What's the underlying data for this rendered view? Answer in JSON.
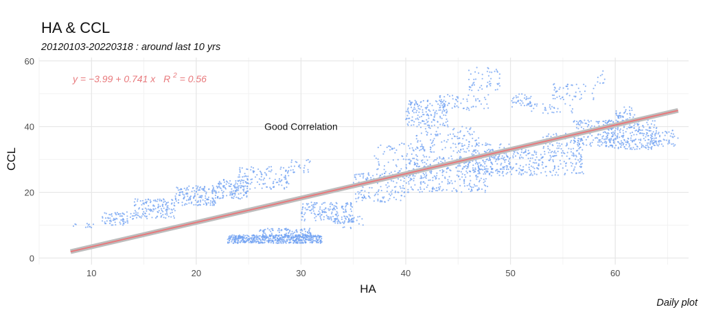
{
  "chart_data": {
    "type": "scatter",
    "title": "HA & CCL",
    "subtitle": "20120103-20220318 : around last 10 yrs",
    "caption": "Daily plot",
    "xlabel": "HA",
    "ylabel": "CCL",
    "xlim": [
      5,
      67
    ],
    "ylim": [
      -2,
      61
    ],
    "x_ticks": [
      10,
      20,
      30,
      40,
      50,
      60
    ],
    "y_ticks": [
      0,
      20,
      40,
      60
    ],
    "grid": true,
    "point_color": "#6fa0f2",
    "fit_line": {
      "intercept": -3.99,
      "slope": 0.741,
      "r2": 0.56,
      "x_range": [
        8,
        66
      ],
      "line_color": "#e8797c",
      "band_color": "#bdbdbd"
    },
    "equation_label": {
      "yhat": "y",
      "body": " = −3.99 + 0.741 x",
      "r": "R",
      "sup": "2",
      "tail": " = 0.56"
    },
    "annotations": [
      {
        "text": "Good Correlation",
        "x": 30,
        "y": 40
      }
    ],
    "clusters": [
      {
        "x": [
          8,
          10.5
        ],
        "y": [
          9,
          10.5
        ],
        "n": 12
      },
      {
        "x": [
          11,
          14
        ],
        "y": [
          10,
          14
        ],
        "n": 70
      },
      {
        "x": [
          14,
          18
        ],
        "y": [
          12,
          18
        ],
        "n": 140
      },
      {
        "x": [
          18,
          22
        ],
        "y": [
          16,
          22
        ],
        "n": 160
      },
      {
        "x": [
          22,
          25
        ],
        "y": [
          18,
          24
        ],
        "n": 120
      },
      {
        "x": [
          24,
          29
        ],
        "y": [
          21,
          28
        ],
        "n": 120
      },
      {
        "x": [
          29,
          31
        ],
        "y": [
          26,
          30
        ],
        "n": 25
      },
      {
        "x": [
          23,
          32
        ],
        "y": [
          4.5,
          7
        ],
        "n": 500
      },
      {
        "x": [
          26,
          31
        ],
        "y": [
          6,
          9
        ],
        "n": 120
      },
      {
        "x": [
          30,
          35
        ],
        "y": [
          11,
          17
        ],
        "n": 160
      },
      {
        "x": [
          33,
          36
        ],
        "y": [
          9,
          13
        ],
        "n": 40
      },
      {
        "x": [
          35,
          40
        ],
        "y": [
          17,
          26
        ],
        "n": 140
      },
      {
        "x": [
          37,
          42
        ],
        "y": [
          23,
          35
        ],
        "n": 100
      },
      {
        "x": [
          40,
          44
        ],
        "y": [
          40,
          48
        ],
        "n": 160
      },
      {
        "x": [
          43,
          48
        ],
        "y": [
          45,
          50
        ],
        "n": 60
      },
      {
        "x": [
          46,
          49
        ],
        "y": [
          51,
          58
        ],
        "n": 50
      },
      {
        "x": [
          41,
          47
        ],
        "y": [
          32,
          40
        ],
        "n": 110
      },
      {
        "x": [
          40,
          48
        ],
        "y": [
          20,
          31
        ],
        "n": 300
      },
      {
        "x": [
          45,
          50
        ],
        "y": [
          26,
          35
        ],
        "n": 130
      },
      {
        "x": [
          48,
          53
        ],
        "y": [
          25,
          33
        ],
        "n": 160
      },
      {
        "x": [
          50,
          52
        ],
        "y": [
          46,
          50
        ],
        "n": 40
      },
      {
        "x": [
          52,
          56
        ],
        "y": [
          44,
          47
        ],
        "n": 30
      },
      {
        "x": [
          54,
          58
        ],
        "y": [
          48,
          53
        ],
        "n": 50
      },
      {
        "x": [
          58,
          59
        ],
        "y": [
          52,
          57
        ],
        "n": 10
      },
      {
        "x": [
          53,
          57
        ],
        "y": [
          25,
          38
        ],
        "n": 170
      },
      {
        "x": [
          56,
          60
        ],
        "y": [
          34,
          42
        ],
        "n": 130
      },
      {
        "x": [
          59,
          64
        ],
        "y": [
          33,
          42
        ],
        "n": 260
      },
      {
        "x": [
          60,
          62
        ],
        "y": [
          42,
          46
        ],
        "n": 40
      },
      {
        "x": [
          63,
          66
        ],
        "y": [
          34,
          39
        ],
        "n": 60
      }
    ]
  }
}
